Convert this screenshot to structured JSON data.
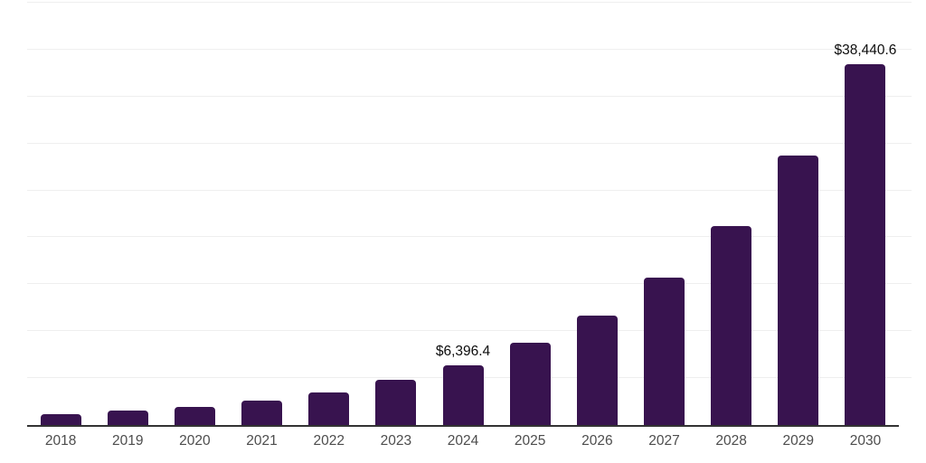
{
  "chart_data": {
    "type": "bar",
    "title": "",
    "xlabel": "",
    "ylabel": "",
    "categories": [
      "2018",
      "2019",
      "2020",
      "2021",
      "2022",
      "2023",
      "2024",
      "2025",
      "2026",
      "2027",
      "2028",
      "2029",
      "2030"
    ],
    "values": [
      1130,
      1540,
      1930,
      2570,
      3470,
      4820,
      6396.4,
      8770,
      11660,
      15710,
      21200,
      28720,
      38440.6
    ],
    "data_labels": [
      "",
      "",
      "",
      "",
      "",
      "",
      "$6,396.4",
      "",
      "",
      "",
      "",
      "",
      "$38,440.6"
    ],
    "ylim": [
      0,
      45000
    ],
    "gridline_interval": 5000,
    "grid": "horizontal",
    "legend": "none",
    "colors": {
      "bar": "#38134f",
      "gridline": "#efefef",
      "axis_line": "#333333",
      "tick_label": "#4d4d4d",
      "data_label": "#0d0d0d",
      "background": "#ffffff"
    }
  }
}
